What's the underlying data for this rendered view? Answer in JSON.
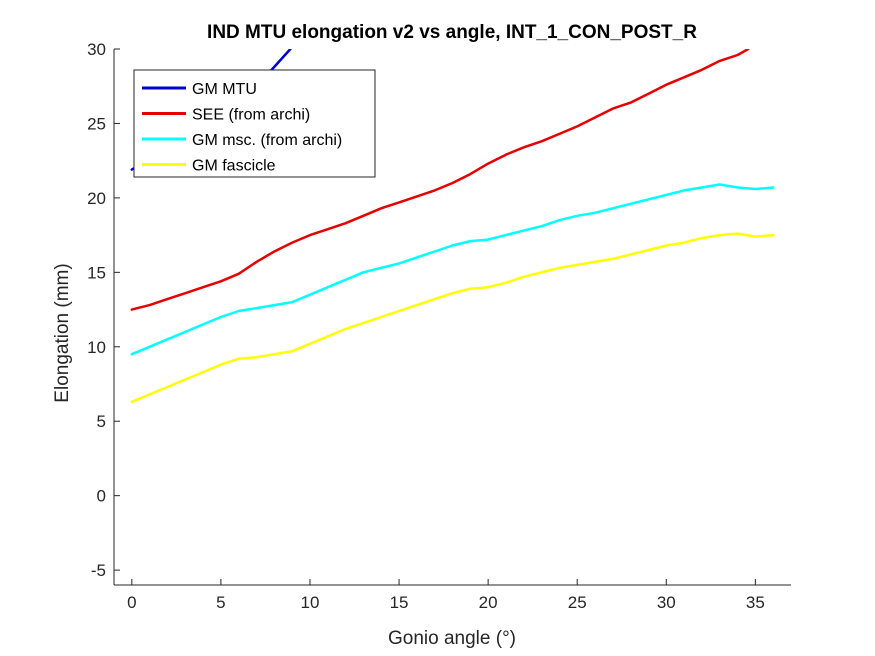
{
  "chart_data": {
    "type": "line",
    "title": "IND MTU elongation v2 vs angle, INT_1_CON_POST_R",
    "xlabel": "Gonio angle (°)",
    "ylabel": "Elongation (mm)",
    "xlim": [
      -1,
      37
    ],
    "ylim": [
      -6,
      30
    ],
    "xticks": [
      "0",
      "5",
      "10",
      "15",
      "20",
      "25",
      "30",
      "35"
    ],
    "yticks": [
      "-5",
      "0",
      "5",
      "10",
      "15",
      "20",
      "25",
      "30"
    ],
    "grid": false,
    "legend_position": "top-left",
    "series": [
      {
        "name": "GM MTU",
        "color": "#0000cc",
        "x": [
          0,
          1,
          2,
          3,
          4,
          5,
          6,
          7,
          8,
          8.9
        ],
        "y": [
          21.9,
          22.6,
          23.3,
          24.1,
          24.8,
          25.6,
          26.5,
          27.5,
          28.8,
          30.0
        ]
      },
      {
        "name": "SEE (from archi)",
        "color": "#e60000",
        "x": [
          0,
          1,
          2,
          3,
          4,
          5,
          6,
          7,
          8,
          9,
          10,
          11,
          12,
          13,
          14,
          15,
          16,
          17,
          18,
          19,
          20,
          21,
          22,
          23,
          24,
          25,
          26,
          27,
          28,
          29,
          30,
          31,
          32,
          33,
          34,
          34.6
        ],
        "y": [
          12.5,
          12.8,
          13.2,
          13.6,
          14.0,
          14.4,
          14.9,
          15.7,
          16.4,
          17.0,
          17.5,
          17.9,
          18.3,
          18.8,
          19.3,
          19.7,
          20.1,
          20.5,
          21.0,
          21.6,
          22.3,
          22.9,
          23.4,
          23.8,
          24.3,
          24.8,
          25.4,
          26.0,
          26.4,
          27.0,
          27.6,
          28.1,
          28.6,
          29.2,
          29.6,
          30.0
        ]
      },
      {
        "name": "GM msc. (from archi)",
        "color": "#00ffff",
        "x": [
          0,
          1,
          2,
          3,
          4,
          5,
          6,
          7,
          8,
          9,
          10,
          11,
          12,
          13,
          14,
          15,
          16,
          17,
          18,
          19,
          20,
          21,
          22,
          23,
          24,
          25,
          26,
          27,
          28,
          29,
          30,
          31,
          32,
          33,
          34,
          35,
          36
        ],
        "y": [
          9.5,
          10.0,
          10.5,
          11.0,
          11.5,
          12.0,
          12.4,
          12.6,
          12.8,
          13.0,
          13.5,
          14.0,
          14.5,
          15.0,
          15.3,
          15.6,
          16.0,
          16.4,
          16.8,
          17.1,
          17.2,
          17.5,
          17.8,
          18.1,
          18.5,
          18.8,
          19.0,
          19.3,
          19.6,
          19.9,
          20.2,
          20.5,
          20.7,
          20.9,
          20.7,
          20.6,
          20.7
        ]
      },
      {
        "name": "GM fascicle",
        "color": "#ffff00",
        "x": [
          0,
          1,
          2,
          3,
          4,
          5,
          6,
          7,
          8,
          9,
          10,
          11,
          12,
          13,
          14,
          15,
          16,
          17,
          18,
          19,
          20,
          21,
          22,
          23,
          24,
          25,
          26,
          27,
          28,
          29,
          30,
          31,
          32,
          33,
          34,
          35,
          36
        ],
        "y": [
          6.3,
          6.8,
          7.3,
          7.8,
          8.3,
          8.8,
          9.2,
          9.3,
          9.5,
          9.7,
          10.2,
          10.7,
          11.2,
          11.6,
          12.0,
          12.4,
          12.8,
          13.2,
          13.6,
          13.9,
          14.0,
          14.3,
          14.7,
          15.0,
          15.3,
          15.5,
          15.7,
          15.9,
          16.2,
          16.5,
          16.8,
          17.0,
          17.3,
          17.5,
          17.6,
          17.4,
          17.5
        ]
      }
    ]
  }
}
